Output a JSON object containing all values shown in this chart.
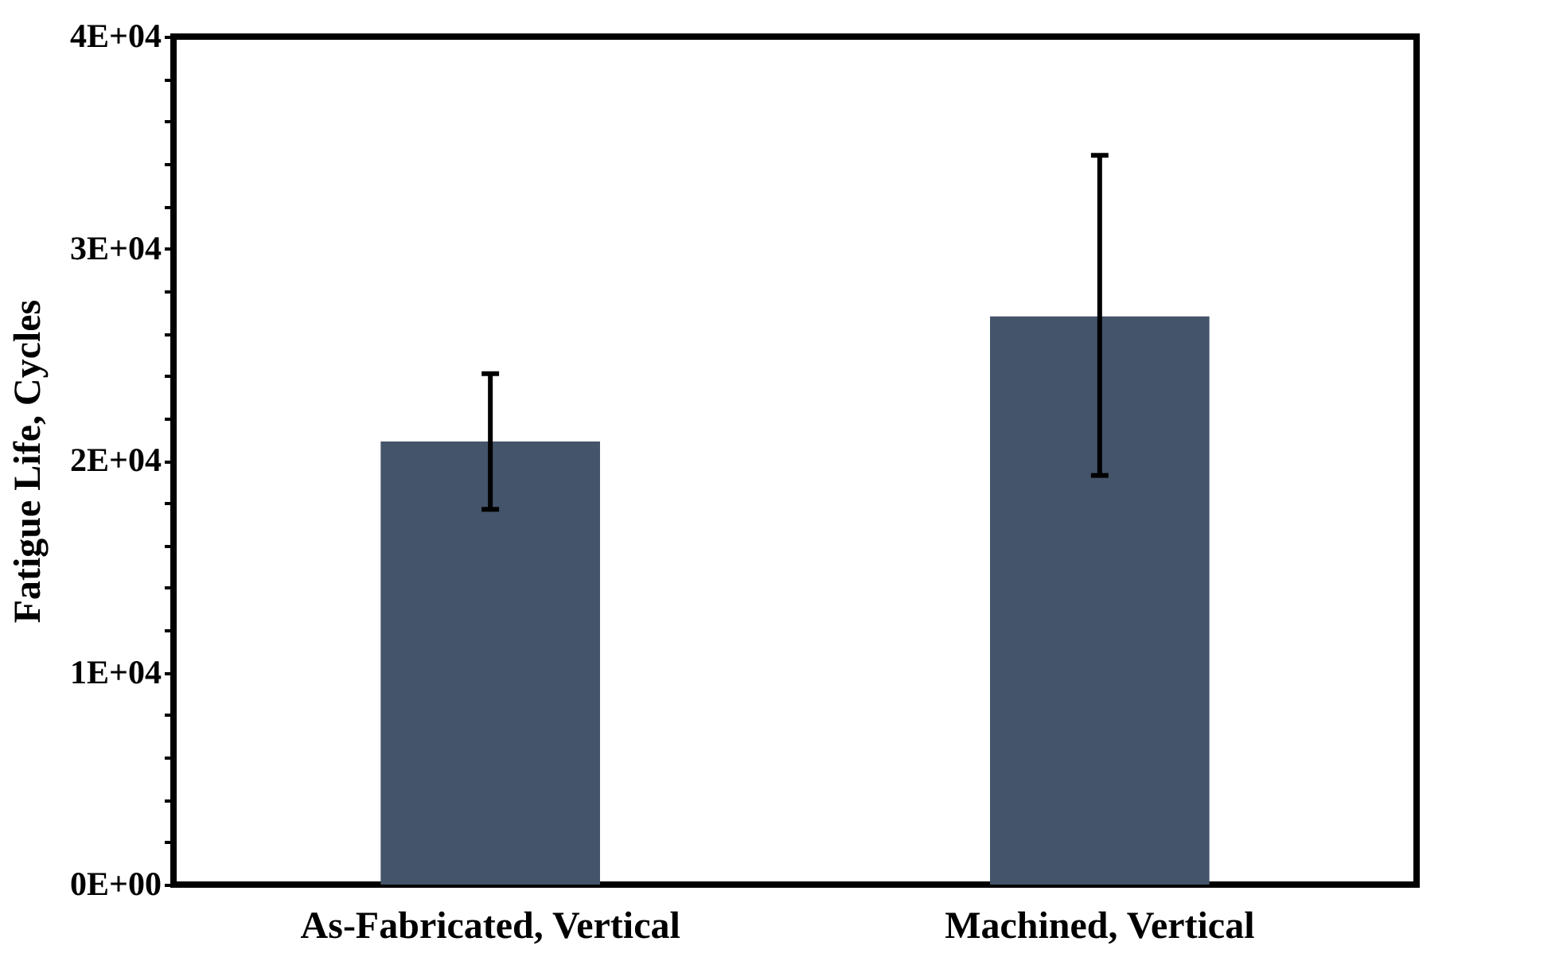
{
  "chart_data": {
    "type": "bar",
    "ylabel": "Fatigue Life, Cycles",
    "categories": [
      "As-Fabricated, Vertical",
      "Machined, Vertical"
    ],
    "values": [
      20900,
      26800
    ],
    "color": "#44546a",
    "errors": [
      [
        17700,
        24100
      ],
      [
        19300,
        34400
      ]
    ],
    "ylim": [
      0,
      40000
    ],
    "yticks": [
      {
        "value": 0,
        "label": "0E+00"
      },
      {
        "value": 2000,
        "label": null
      },
      {
        "value": 4000,
        "label": null
      },
      {
        "value": 6000,
        "label": null
      },
      {
        "value": 8000,
        "label": null
      },
      {
        "value": 10000,
        "label": "1E+04"
      },
      {
        "value": 12000,
        "label": null
      },
      {
        "value": 14000,
        "label": null
      },
      {
        "value": 16000,
        "label": null
      },
      {
        "value": 18000,
        "label": null
      },
      {
        "value": 20000,
        "label": "2E+04"
      },
      {
        "value": 22000,
        "label": null
      },
      {
        "value": 24000,
        "label": null
      },
      {
        "value": 26000,
        "label": null
      },
      {
        "value": 28000,
        "label": null
      },
      {
        "value": 30000,
        "label": "3E+04"
      },
      {
        "value": 32000,
        "label": null
      },
      {
        "value": 34000,
        "label": null
      },
      {
        "value": 36000,
        "label": null
      },
      {
        "value": 38000,
        "label": null
      },
      {
        "value": 40000,
        "label": "4E+04"
      }
    ],
    "grid": false
  }
}
